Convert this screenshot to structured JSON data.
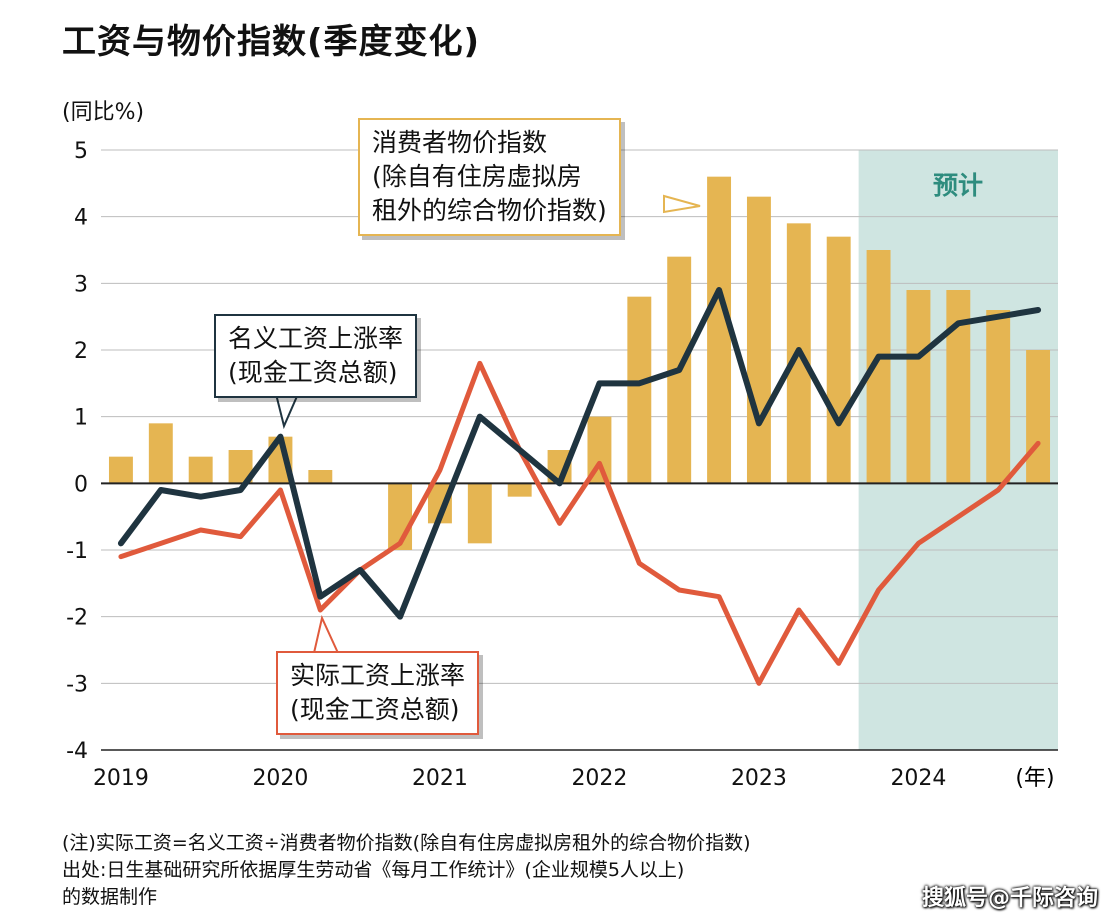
{
  "title": "工资与物价指数(季度变化)",
  "y_unit": "(同比%)",
  "x_unit": "(年)",
  "forecast_label": "预计",
  "colors": {
    "cpi_bar": "#e5b552",
    "nominal_line": "#1f3440",
    "real_line": "#e05a3c",
    "forecast_bg": "#cfe5e1",
    "forecast_text": "#2e8c7e"
  },
  "callouts": {
    "cpi": [
      "消费者物价指数",
      "(除自有住房虚拟房",
      "租外的综合物价指数)"
    ],
    "nominal": [
      "名义工资上涨率",
      "(现金工资总额)"
    ],
    "real": [
      "实际工资上涨率",
      "(现金工资总额)"
    ]
  },
  "chart_data": {
    "type": "bar",
    "ylim": [
      -4,
      5
    ],
    "yticks": [
      "5",
      "4",
      "3",
      "2",
      "1",
      "0",
      "-1",
      "-2",
      "-3",
      "-4"
    ],
    "year_labels": [
      "2019",
      "2020",
      "2021",
      "2022",
      "2023",
      "2024"
    ],
    "forecast_start_quarter": 19,
    "quarters": [
      "2019Q1",
      "2019Q2",
      "2019Q3",
      "2019Q4",
      "2020Q1",
      "2020Q2",
      "2020Q3",
      "2020Q4",
      "2021Q1",
      "2021Q2",
      "2021Q3",
      "2021Q4",
      "2022Q1",
      "2022Q2",
      "2022Q3",
      "2022Q4",
      "2023Q1",
      "2023Q2",
      "2023Q3",
      "2023Q4",
      "2024Q1",
      "2024Q2",
      "2024Q3",
      "2024Q4"
    ],
    "series": [
      {
        "name": "消费者物价指数(除自有住房虚拟房租外的综合物价指数)",
        "type": "bar",
        "values": [
          0.4,
          0.9,
          0.4,
          0.5,
          0.7,
          0.2,
          null,
          -1.0,
          -0.6,
          -0.9,
          -0.2,
          0.5,
          1.0,
          2.8,
          3.4,
          4.6,
          4.3,
          3.9,
          3.7,
          3.5,
          2.9,
          2.9,
          2.6,
          2.0
        ]
      },
      {
        "name": "名义工资上涨率(现金工资总额)",
        "type": "line",
        "values": [
          -0.9,
          -0.1,
          -0.2,
          -0.1,
          0.7,
          -1.7,
          -1.3,
          -2.0,
          -0.5,
          1.0,
          0.5,
          0.0,
          1.5,
          1.5,
          1.7,
          2.9,
          0.9,
          2.0,
          0.9,
          1.9,
          1.9,
          2.4,
          2.5,
          2.6
        ]
      },
      {
        "name": "实际工资上涨率(现金工资总额)",
        "type": "line",
        "values": [
          -1.1,
          -0.9,
          -0.7,
          -0.8,
          -0.1,
          -1.9,
          -1.3,
          -0.9,
          0.2,
          1.8,
          0.5,
          -0.6,
          0.3,
          -1.2,
          -1.6,
          -1.7,
          -3.0,
          -1.9,
          -2.7,
          -1.6,
          -0.9,
          -0.5,
          -0.1,
          0.6
        ]
      }
    ]
  },
  "notes": [
    "(注)实际工资=名义工资÷消费者物价指数(除自有住房虚拟房租外的综合物价指数)",
    "出处:日生基础研究所依据厚生劳动省《每月工作统计》(企业规模5人以上)",
    "的数据制作"
  ],
  "watermark": "搜狐号@千际咨询"
}
